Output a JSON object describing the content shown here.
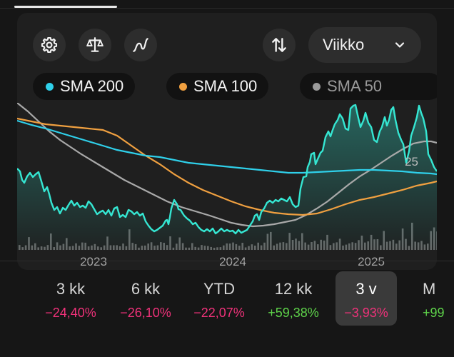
{
  "toolbar": {
    "icons": [
      "gear-icon",
      "scale-icon",
      "curve-icon",
      "swap-icon"
    ],
    "dropdown": {
      "label": "Viikko",
      "icon": "chevron-down-icon"
    }
  },
  "legend": [
    {
      "label": "SMA 200",
      "color": "#2fd0ea"
    },
    {
      "label": "SMA 100",
      "color": "#f0a040"
    },
    {
      "label": "SMA 50",
      "color": "#9a9a9a"
    }
  ],
  "chart_data": {
    "type": "line",
    "x_ticks": [
      "2023",
      "2024",
      "2025"
    ],
    "last_value_label": "25",
    "series": [
      {
        "name": "SMA 200",
        "color": "#2fd0ea"
      },
      {
        "name": "SMA 100",
        "color": "#f0a040"
      },
      {
        "name": "SMA 50",
        "color": "#a9a9a9"
      }
    ],
    "price_color": "#35e6d2",
    "volume_color": "#666666",
    "grid": false
  },
  "periods": [
    {
      "label": "3 kk",
      "change": "−24,40%",
      "direction": "down",
      "selected": false
    },
    {
      "label": "6 kk",
      "change": "−26,10%",
      "direction": "down",
      "selected": false
    },
    {
      "label": "YTD",
      "change": "−22,07%",
      "direction": "down",
      "selected": false
    },
    {
      "label": "12 kk",
      "change": "+59,38%",
      "direction": "up",
      "selected": false
    },
    {
      "label": "3 v",
      "change": "−3,93%",
      "direction": "down",
      "selected": true
    },
    {
      "label": "M",
      "change": "+99",
      "direction": "up",
      "selected": false
    }
  ],
  "colors": {
    "down": "#f0327a",
    "up": "#5ed34a"
  }
}
